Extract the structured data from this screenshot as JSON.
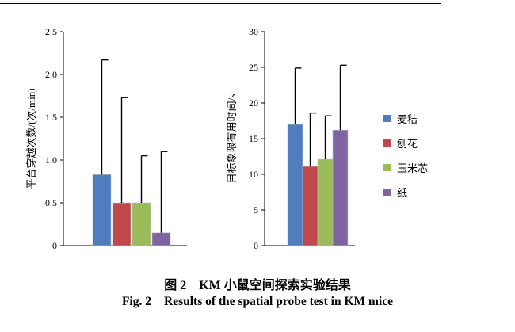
{
  "chart_data": [
    {
      "type": "bar",
      "ylabel": "平台穿越次数/(次/min)",
      "ylim": [
        0,
        2.5
      ],
      "yticks": [
        "0",
        "0.5",
        "1.0",
        "1.5",
        "2.0",
        "2.5"
      ],
      "ytick_values": [
        0,
        0.5,
        1.0,
        1.5,
        2.0,
        2.5
      ],
      "series": [
        {
          "name": "麦秸",
          "value": 0.83,
          "error": 1.34
        },
        {
          "name": "刨花",
          "value": 0.5,
          "error": 1.23
        },
        {
          "name": "玉米芯",
          "value": 0.5,
          "error": 0.55
        },
        {
          "name": "纸",
          "value": 0.15,
          "error": 0.95
        }
      ]
    },
    {
      "type": "bar",
      "ylabel": "目标象限有用时间/s",
      "ylim": [
        0,
        30
      ],
      "yticks": [
        "0",
        "5",
        "10",
        "15",
        "20",
        "25",
        "30"
      ],
      "ytick_values": [
        0,
        5,
        10,
        15,
        20,
        25,
        30
      ],
      "series": [
        {
          "name": "麦秸",
          "value": 17.0,
          "error": 7.9
        },
        {
          "name": "刨花",
          "value": 11.1,
          "error": 7.5
        },
        {
          "name": "玉米芯",
          "value": 12.1,
          "error": 6.1
        },
        {
          "name": "纸",
          "value": 16.2,
          "error": 9.1
        }
      ]
    }
  ],
  "legend": {
    "placement": "right",
    "items": [
      {
        "label": "麦秸",
        "color": "#4f7dbd"
      },
      {
        "label": "刨花",
        "color": "#c0484b"
      },
      {
        "label": "玉米芯",
        "color": "#9bbb5b"
      },
      {
        "label": "纸",
        "color": "#7f64a2"
      }
    ]
  },
  "caption": {
    "cn_label": "图 2",
    "cn_text": "KM 小鼠空间探索实验结果",
    "en_label": "Fig. 2",
    "en_text": "Results of the spatial probe test in KM mice"
  }
}
